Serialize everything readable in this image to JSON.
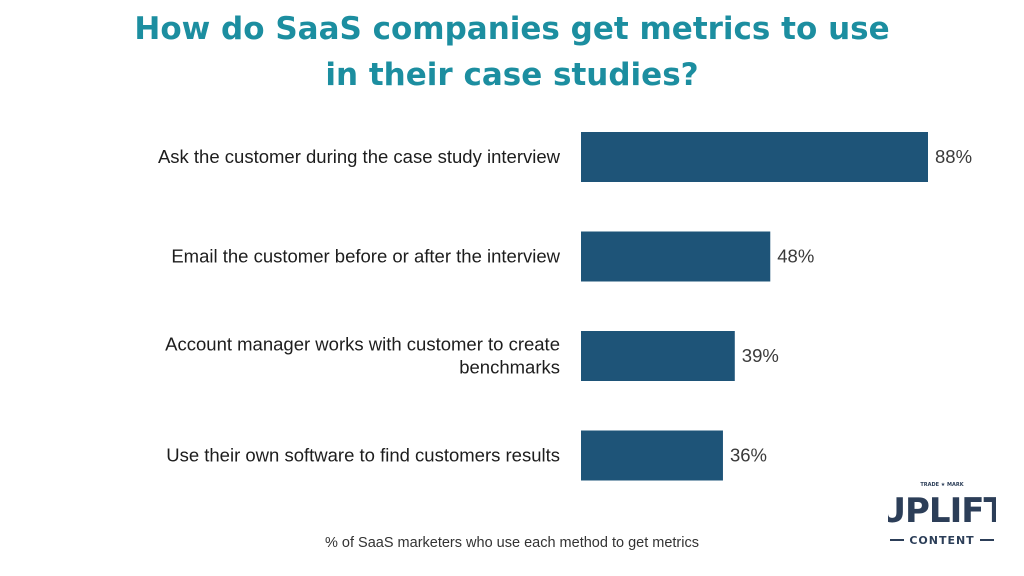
{
  "title_lines": [
    "How do SaaS companies get metrics to use",
    "in their case studies?"
  ],
  "chart_data": {
    "type": "bar",
    "orientation": "horizontal",
    "categories": [
      [
        "Ask the customer during the case study interview"
      ],
      [
        "Email the customer before or after the interview"
      ],
      [
        "Account manager works with customer to create",
        "benchmarks"
      ],
      [
        "Use their own software to find customers results"
      ]
    ],
    "values": [
      88,
      48,
      39,
      36
    ],
    "value_labels": [
      "88%",
      "48%",
      "39%",
      "36%"
    ],
    "bar_color": "#1e5478",
    "xlim": [
      0,
      100
    ],
    "grid": false,
    "legend": "none"
  },
  "footnote": "% of SaaS marketers who use each method to get metrics",
  "logo": {
    "top_text": "TRADE ★ MARK",
    "main_text": "UPLIFT",
    "sub_text": "CONTENT",
    "color": "#2c3e58",
    "star_color": "#c0392b"
  }
}
